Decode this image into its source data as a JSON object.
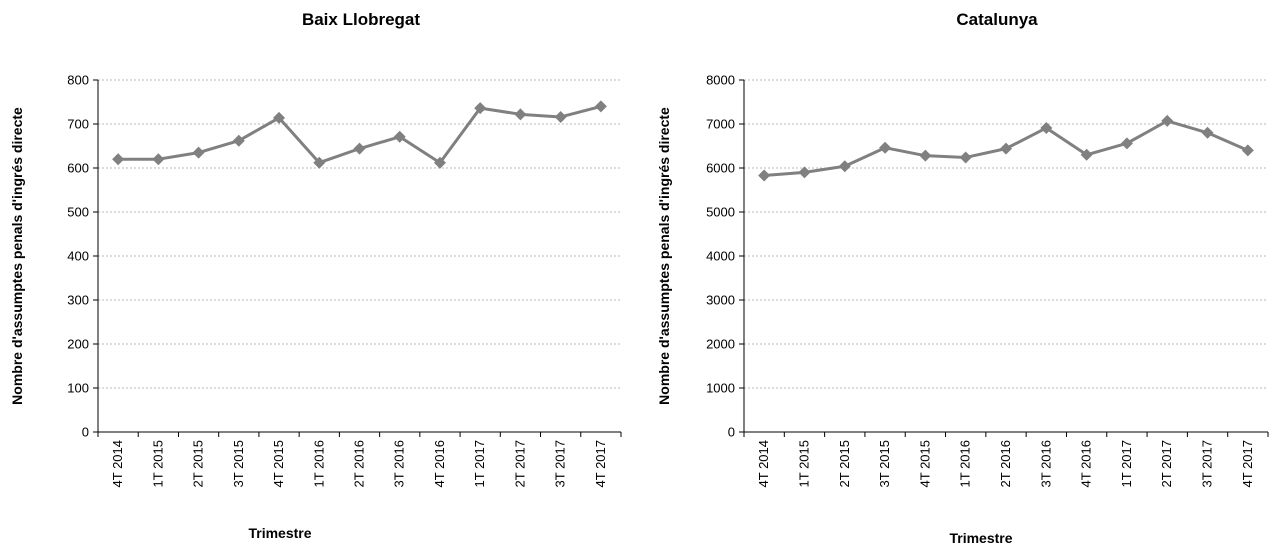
{
  "chart_data": [
    {
      "type": "line",
      "title": "Baix Llobregat",
      "xlabel": "Trimestre",
      "ylabel": "Nombre d'assumptes penals d'ingrés directe",
      "categories": [
        "4T 2014",
        "1T 2015",
        "2T 2015",
        "3T 2015",
        "4T 2015",
        "1T 2016",
        "2T 2016",
        "3T 2016",
        "4T 2016",
        "1T 2017",
        "2T 2017",
        "3T 2017",
        "4T 2017"
      ],
      "yticks": [
        "0",
        "100",
        "200",
        "300",
        "400",
        "500",
        "600",
        "700",
        "800"
      ],
      "ylim": [
        0,
        800
      ],
      "grid": true,
      "series": [
        {
          "values": [
            620,
            620,
            635,
            662,
            714,
            612,
            644,
            671,
            612,
            736,
            722,
            716,
            740
          ],
          "color": "#808080"
        }
      ]
    },
    {
      "type": "line",
      "title": "Catalunya",
      "xlabel": "Trimestre",
      "ylabel": "Nombre d'assumptes penals d'ingrés directe",
      "categories": [
        "4T 2014",
        "1T 2015",
        "2T 2015",
        "3T 2015",
        "4T 2015",
        "1T 2016",
        "2T 2016",
        "3T 2016",
        "4T 2016",
        "1T 2017",
        "2T 2017",
        "3T 2017",
        "4T 2017"
      ],
      "yticks": [
        "0",
        "1000",
        "2000",
        "3000",
        "4000",
        "5000",
        "6000",
        "7000",
        "8000"
      ],
      "ylim": [
        0,
        8000
      ],
      "grid": true,
      "series": [
        {
          "values": [
            5830,
            5900,
            6040,
            6460,
            6280,
            6240,
            6440,
            6910,
            6300,
            6560,
            7070,
            6800,
            6400
          ],
          "color": "#808080"
        }
      ]
    }
  ]
}
